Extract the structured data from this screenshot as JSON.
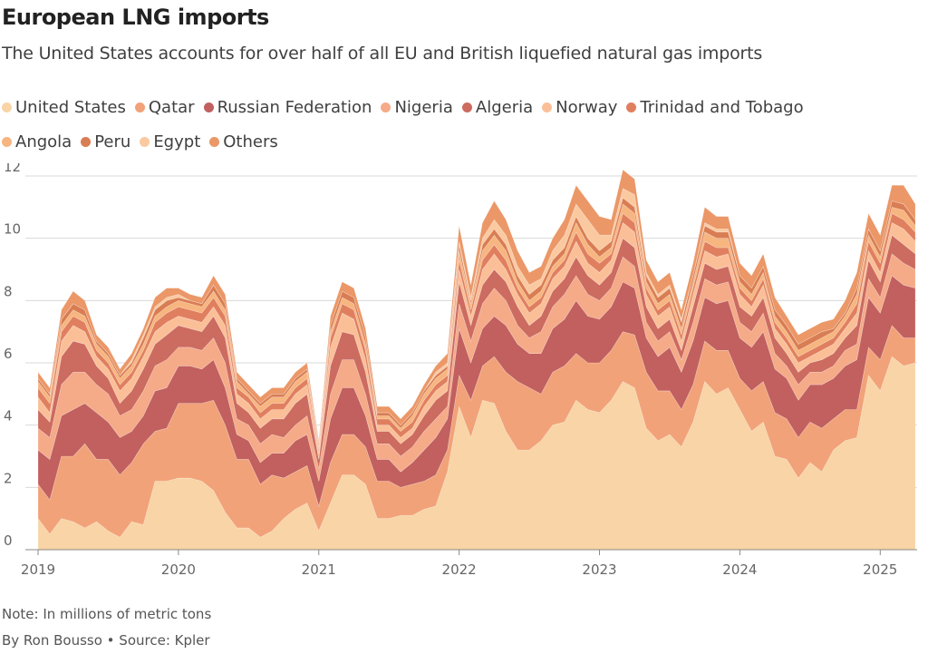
{
  "title": "European LNG imports",
  "subtitle": "The United States accounts for over half of all EU and British liquefied natural gas imports",
  "note": "Note: In millions of metric tons",
  "byline": "By Ron Bousso • Source: Kpler",
  "chart_data": {
    "type": "area",
    "stacked": true,
    "ylim": [
      0,
      12
    ],
    "yticks": [
      0,
      2,
      4,
      6,
      8,
      10,
      12
    ],
    "xlim": [
      "2019-01",
      "2025-04"
    ],
    "xticks": [
      "2019",
      "2020",
      "2021",
      "2022",
      "2023",
      "2024",
      "2025"
    ],
    "grid": "horizontal",
    "legend_position": "top",
    "x": [
      "2019-01",
      "2019-02",
      "2019-03",
      "2019-04",
      "2019-05",
      "2019-06",
      "2019-07",
      "2019-08",
      "2019-09",
      "2019-10",
      "2019-11",
      "2019-12",
      "2020-01",
      "2020-02",
      "2020-03",
      "2020-04",
      "2020-05",
      "2020-06",
      "2020-07",
      "2020-08",
      "2020-09",
      "2020-10",
      "2020-11",
      "2020-12",
      "2021-01",
      "2021-02",
      "2021-03",
      "2021-04",
      "2021-05",
      "2021-06",
      "2021-07",
      "2021-08",
      "2021-09",
      "2021-10",
      "2021-11",
      "2021-12",
      "2022-01",
      "2022-02",
      "2022-03",
      "2022-04",
      "2022-05",
      "2022-06",
      "2022-07",
      "2022-08",
      "2022-09",
      "2022-10",
      "2022-11",
      "2022-12",
      "2023-01",
      "2023-02",
      "2023-03",
      "2023-04",
      "2023-05",
      "2023-06",
      "2023-07",
      "2023-08",
      "2023-09",
      "2023-10",
      "2023-11",
      "2023-12",
      "2024-01",
      "2024-02",
      "2024-03",
      "2024-04",
      "2024-05",
      "2024-06",
      "2024-07",
      "2024-08",
      "2024-09",
      "2024-10",
      "2024-11",
      "2024-12",
      "2025-01",
      "2025-02",
      "2025-03",
      "2025-04"
    ],
    "series": [
      {
        "name": "United States",
        "color": "#f8d4a6",
        "values": [
          1.0,
          0.5,
          1.0,
          0.9,
          0.7,
          0.9,
          0.6,
          0.4,
          0.9,
          0.8,
          2.2,
          2.2,
          2.3,
          2.3,
          2.2,
          1.9,
          1.2,
          0.7,
          0.7,
          0.4,
          0.6,
          1.0,
          1.3,
          1.5,
          0.6,
          1.5,
          2.4,
          2.4,
          2.1,
          1.0,
          1.0,
          1.1,
          1.1,
          1.3,
          1.4,
          2.5,
          4.6,
          3.6,
          4.8,
          4.7,
          3.8,
          3.2,
          3.2,
          3.5,
          4.0,
          4.1,
          4.8,
          4.5,
          4.4,
          4.8,
          5.4,
          5.2,
          3.9,
          3.5,
          3.7,
          3.3,
          4.1,
          5.4,
          5.0,
          5.2,
          4.5,
          3.8,
          4.1,
          3.0,
          2.9,
          2.3,
          2.8,
          2.5,
          3.2,
          3.5,
          3.6,
          5.6,
          5.1,
          6.2,
          5.9,
          6.0
        ]
      },
      {
        "name": "Qatar",
        "color": "#f2a278",
        "values": [
          1.1,
          1.1,
          2.0,
          2.1,
          2.7,
          2.0,
          2.3,
          2.0,
          1.9,
          2.6,
          1.6,
          1.7,
          2.4,
          2.4,
          2.5,
          2.9,
          2.8,
          2.2,
          2.2,
          1.7,
          1.8,
          1.3,
          1.2,
          1.2,
          0.8,
          1.3,
          1.3,
          1.3,
          1.2,
          1.2,
          1.2,
          0.9,
          1.0,
          0.9,
          1.0,
          0.7,
          1.0,
          1.2,
          1.1,
          1.5,
          1.9,
          2.2,
          2.0,
          1.5,
          1.7,
          1.8,
          1.5,
          1.5,
          1.6,
          1.6,
          1.6,
          1.7,
          1.8,
          1.6,
          1.4,
          1.2,
          1.2,
          1.3,
          1.4,
          1.2,
          1.0,
          1.3,
          1.3,
          1.4,
          1.3,
          1.3,
          1.3,
          1.4,
          1.0,
          1.0,
          0.9,
          0.9,
          1.0,
          1.0,
          0.9,
          0.8
        ]
      },
      {
        "name": "Russian Federation",
        "color": "#c1605f",
        "values": [
          1.1,
          1.3,
          1.3,
          1.5,
          1.3,
          1.5,
          1.2,
          1.2,
          1.0,
          0.9,
          1.3,
          1.3,
          1.2,
          1.2,
          1.1,
          1.3,
          1.2,
          0.8,
          0.6,
          0.7,
          0.7,
          0.8,
          1.0,
          1.0,
          0.8,
          1.4,
          1.5,
          1.5,
          1.0,
          0.7,
          0.7,
          0.5,
          0.7,
          1.0,
          1.2,
          1.0,
          1.5,
          1.2,
          1.2,
          1.3,
          1.5,
          1.2,
          1.1,
          1.3,
          1.4,
          1.5,
          1.7,
          1.5,
          1.4,
          1.4,
          1.6,
          1.5,
          1.1,
          1.1,
          1.4,
          1.2,
          1.4,
          1.4,
          1.5,
          1.6,
          1.3,
          1.4,
          1.6,
          1.4,
          1.3,
          1.2,
          1.2,
          1.4,
          1.3,
          1.4,
          1.6,
          1.6,
          1.5,
          1.6,
          1.7,
          1.6
        ]
      },
      {
        "name": "Nigeria",
        "color": "#f5aa88",
        "values": [
          0.7,
          0.7,
          1.0,
          1.2,
          1.0,
          0.9,
          0.9,
          0.7,
          0.7,
          0.8,
          0.8,
          0.9,
          0.6,
          0.6,
          0.6,
          0.7,
          0.8,
          0.5,
          0.5,
          0.6,
          0.6,
          0.5,
          0.5,
          0.6,
          0.4,
          0.8,
          0.9,
          0.9,
          0.7,
          0.5,
          0.5,
          0.5,
          0.5,
          0.6,
          0.6,
          0.4,
          0.8,
          0.7,
          0.8,
          0.9,
          0.8,
          0.6,
          0.5,
          0.7,
          0.7,
          0.8,
          0.8,
          0.7,
          0.6,
          0.6,
          0.8,
          0.7,
          0.5,
          0.5,
          0.5,
          0.4,
          0.6,
          0.6,
          0.6,
          0.6,
          0.5,
          0.5,
          0.6,
          0.5,
          0.4,
          0.5,
          0.4,
          0.4,
          0.4,
          0.5,
          0.5,
          0.6,
          0.5,
          0.7,
          0.7,
          0.6
        ]
      },
      {
        "name": "Algeria",
        "color": "#cc6b60",
        "values": [
          0.6,
          0.5,
          0.9,
          1.0,
          0.9,
          0.6,
          0.5,
          0.4,
          0.6,
          0.7,
          0.7,
          0.8,
          0.7,
          0.6,
          0.6,
          0.7,
          0.8,
          0.5,
          0.4,
          0.5,
          0.5,
          0.6,
          0.7,
          0.7,
          0.3,
          0.9,
          0.9,
          0.8,
          0.7,
          0.4,
          0.4,
          0.4,
          0.4,
          0.5,
          0.6,
          0.5,
          0.7,
          0.5,
          0.6,
          0.6,
          0.6,
          0.6,
          0.4,
          0.5,
          0.5,
          0.5,
          0.6,
          0.6,
          0.5,
          0.5,
          0.6,
          0.6,
          0.5,
          0.4,
          0.4,
          0.3,
          0.5,
          0.5,
          0.5,
          0.5,
          0.5,
          0.5,
          0.5,
          0.5,
          0.4,
          0.4,
          0.3,
          0.4,
          0.4,
          0.4,
          0.6,
          0.6,
          0.5,
          0.6,
          0.6,
          0.5
        ]
      },
      {
        "name": "Norway",
        "color": "#fbbf98",
        "values": [
          0.4,
          0.3,
          0.5,
          0.5,
          0.4,
          0.3,
          0.3,
          0.4,
          0.4,
          0.4,
          0.4,
          0.4,
          0.3,
          0.3,
          0.3,
          0.3,
          0.4,
          0.3,
          0.3,
          0.3,
          0.3,
          0.3,
          0.3,
          0.3,
          0.2,
          0.6,
          0.6,
          0.5,
          0.4,
          0.2,
          0.2,
          0.2,
          0.2,
          0.3,
          0.3,
          0.3,
          0.4,
          0.3,
          0.5,
          0.5,
          0.4,
          0.4,
          0.4,
          0.4,
          0.4,
          0.4,
          0.5,
          0.4,
          0.4,
          0.4,
          0.5,
          0.5,
          0.4,
          0.4,
          0.4,
          0.3,
          0.4,
          0.4,
          0.4,
          0.4,
          0.4,
          0.3,
          0.4,
          0.3,
          0.3,
          0.3,
          0.2,
          0.3,
          0.3,
          0.3,
          0.4,
          0.3,
          0.3,
          0.4,
          0.5,
          0.4
        ]
      },
      {
        "name": "Trinidad and Tobago",
        "color": "#e07f5f",
        "values": [
          0.3,
          0.3,
          0.3,
          0.3,
          0.3,
          0.2,
          0.2,
          0.2,
          0.2,
          0.2,
          0.3,
          0.3,
          0.3,
          0.3,
          0.3,
          0.3,
          0.3,
          0.2,
          0.2,
          0.2,
          0.2,
          0.2,
          0.2,
          0.2,
          0.1,
          0.3,
          0.3,
          0.3,
          0.3,
          0.2,
          0.2,
          0.2,
          0.2,
          0.2,
          0.2,
          0.2,
          0.3,
          0.2,
          0.3,
          0.3,
          0.3,
          0.2,
          0.2,
          0.2,
          0.2,
          0.2,
          0.3,
          0.3,
          0.3,
          0.2,
          0.3,
          0.3,
          0.2,
          0.2,
          0.2,
          0.2,
          0.2,
          0.3,
          0.3,
          0.2,
          0.2,
          0.2,
          0.2,
          0.2,
          0.2,
          0.2,
          0.2,
          0.2,
          0.2,
          0.2,
          0.3,
          0.3,
          0.3,
          0.3,
          0.3,
          0.3
        ]
      },
      {
        "name": "Angola",
        "color": "#f7b57f",
        "values": [
          0.2,
          0.2,
          0.2,
          0.2,
          0.2,
          0.2,
          0.2,
          0.2,
          0.2,
          0.2,
          0.2,
          0.2,
          0.2,
          0.2,
          0.2,
          0.2,
          0.2,
          0.2,
          0.1,
          0.2,
          0.2,
          0.2,
          0.2,
          0.2,
          0.1,
          0.2,
          0.2,
          0.2,
          0.2,
          0.1,
          0.1,
          0.1,
          0.2,
          0.2,
          0.2,
          0.2,
          0.3,
          0.2,
          0.3,
          0.3,
          0.3,
          0.2,
          0.2,
          0.2,
          0.2,
          0.2,
          0.3,
          0.3,
          0.2,
          0.2,
          0.3,
          0.3,
          0.2,
          0.2,
          0.2,
          0.2,
          0.2,
          0.3,
          0.3,
          0.3,
          0.2,
          0.2,
          0.2,
          0.2,
          0.2,
          0.2,
          0.2,
          0.2,
          0.2,
          0.2,
          0.3,
          0.2,
          0.2,
          0.2,
          0.3,
          0.2
        ]
      },
      {
        "name": "Peru",
        "color": "#d97d53",
        "values": [
          0.1,
          0.1,
          0.2,
          0.2,
          0.2,
          0.1,
          0.1,
          0.1,
          0.1,
          0.2,
          0.2,
          0.2,
          0.1,
          0.1,
          0.1,
          0.2,
          0.2,
          0.1,
          0.1,
          0.1,
          0.1,
          0.1,
          0.1,
          0.1,
          0.1,
          0.2,
          0.2,
          0.2,
          0.2,
          0.1,
          0.1,
          0.1,
          0.1,
          0.1,
          0.1,
          0.1,
          0.2,
          0.1,
          0.2,
          0.2,
          0.2,
          0.2,
          0.2,
          0.2,
          0.2,
          0.2,
          0.2,
          0.2,
          0.2,
          0.2,
          0.2,
          0.2,
          0.2,
          0.2,
          0.2,
          0.2,
          0.2,
          0.2,
          0.2,
          0.2,
          0.2,
          0.2,
          0.2,
          0.2,
          0.2,
          0.2,
          0.2,
          0.2,
          0.1,
          0.1,
          0.2,
          0.2,
          0.2,
          0.2,
          0.2,
          0.2
        ]
      },
      {
        "name": "Egypt",
        "color": "#fbc9a0",
        "values": [
          0.0,
          0.0,
          0.0,
          0.0,
          0.0,
          0.0,
          0.0,
          0.0,
          0.1,
          0.1,
          0.1,
          0.1,
          0.1,
          0.0,
          0.0,
          0.0,
          0.0,
          0.0,
          0.0,
          0.0,
          0.0,
          0.0,
          0.0,
          0.0,
          0.0,
          0.0,
          0.0,
          0.0,
          0.0,
          0.0,
          0.0,
          0.0,
          0.0,
          0.0,
          0.1,
          0.1,
          0.1,
          0.1,
          0.2,
          0.3,
          0.3,
          0.3,
          0.3,
          0.2,
          0.3,
          0.4,
          0.4,
          0.6,
          0.5,
          0.2,
          0.3,
          0.4,
          0.1,
          0.1,
          0.1,
          0.1,
          0.0,
          0.1,
          0.1,
          0.1,
          0.0,
          0.0,
          0.0,
          0.0,
          0.0,
          0.0,
          0.0,
          0.0,
          0.0,
          0.0,
          0.0,
          0.0,
          0.0,
          0.0,
          0.0,
          0.0
        ]
      },
      {
        "name": "Others",
        "color": "#eb9767",
        "values": [
          0.2,
          0.2,
          0.3,
          0.4,
          0.3,
          0.2,
          0.2,
          0.2,
          0.2,
          0.2,
          0.3,
          0.3,
          0.2,
          0.2,
          0.2,
          0.3,
          0.3,
          0.2,
          0.2,
          0.2,
          0.2,
          0.2,
          0.2,
          0.2,
          0.1,
          0.3,
          0.3,
          0.3,
          0.3,
          0.2,
          0.2,
          0.2,
          0.2,
          0.2,
          0.2,
          0.3,
          0.5,
          0.4,
          0.5,
          0.6,
          0.5,
          0.5,
          0.4,
          0.4,
          0.4,
          0.5,
          0.6,
          0.6,
          0.6,
          0.5,
          0.6,
          0.5,
          0.4,
          0.4,
          0.4,
          0.3,
          0.4,
          0.5,
          0.4,
          0.4,
          0.4,
          0.4,
          0.4,
          0.4,
          0.3,
          0.3,
          0.3,
          0.3,
          0.3,
          0.4,
          0.5,
          0.5,
          0.5,
          0.5,
          0.6,
          0.5
        ]
      }
    ]
  }
}
